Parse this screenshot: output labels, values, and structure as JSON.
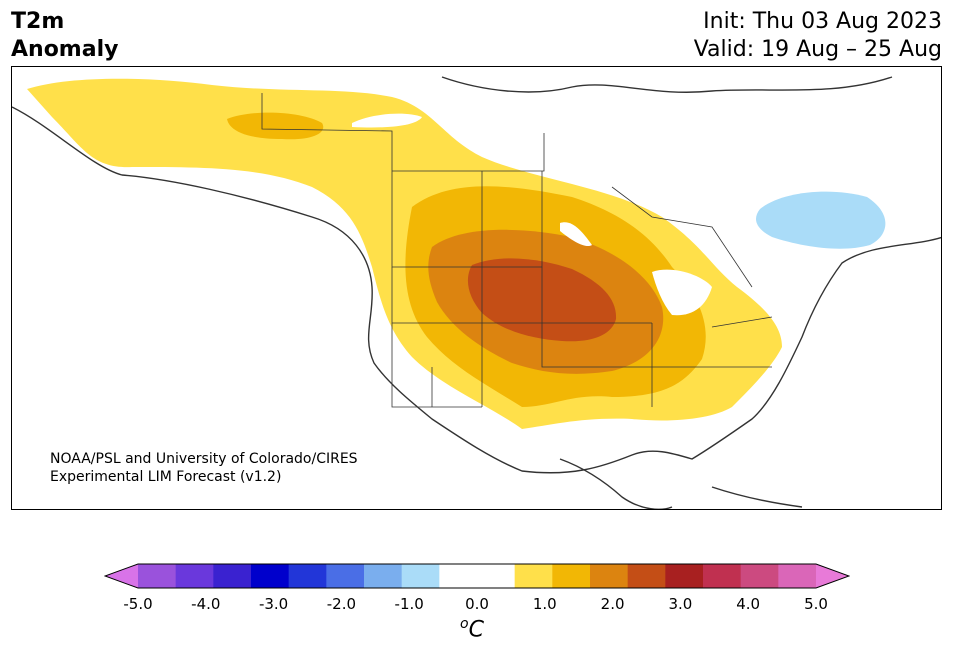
{
  "title": {
    "line1": "T2m",
    "line2": "Anomaly"
  },
  "header": {
    "init": "Init: Thu 03 Aug 2023",
    "valid": "Valid: 19 Aug – 25 Aug"
  },
  "credit": {
    "line1": "NOAA/PSL and University of Colorado/CIRES",
    "line2": "Experimental LIM Forecast (v1.2)"
  },
  "colorbar": {
    "ticks": [
      "-5.0",
      "-4.0",
      "-3.0",
      "-2.0",
      "-1.0",
      "0.0",
      "1.0",
      "2.0",
      "3.0",
      "4.0",
      "5.0"
    ],
    "unit_base": "C",
    "unit_sup": "o",
    "colors": [
      "#d873e8",
      "#9a52dc",
      "#6a38dc",
      "#3a22d0",
      "#0000cc",
      "#2236d8",
      "#4a6ee6",
      "#7aaeee",
      "#aadcf8",
      "#ffffff",
      "#ffffff",
      "#ffe04a",
      "#f2b705",
      "#dc8410",
      "#c44e16",
      "#a82020",
      "#c03050",
      "#cc4a80",
      "#da66b8",
      "#e87ad8"
    ]
  },
  "legend_colors": {
    "anomaly_light": "#ffe04a",
    "anomaly_mid": "#f2b705",
    "anomaly_dark": "#dc8410",
    "anomaly_max": "#c44e16",
    "cool": "#aadcf8"
  }
}
